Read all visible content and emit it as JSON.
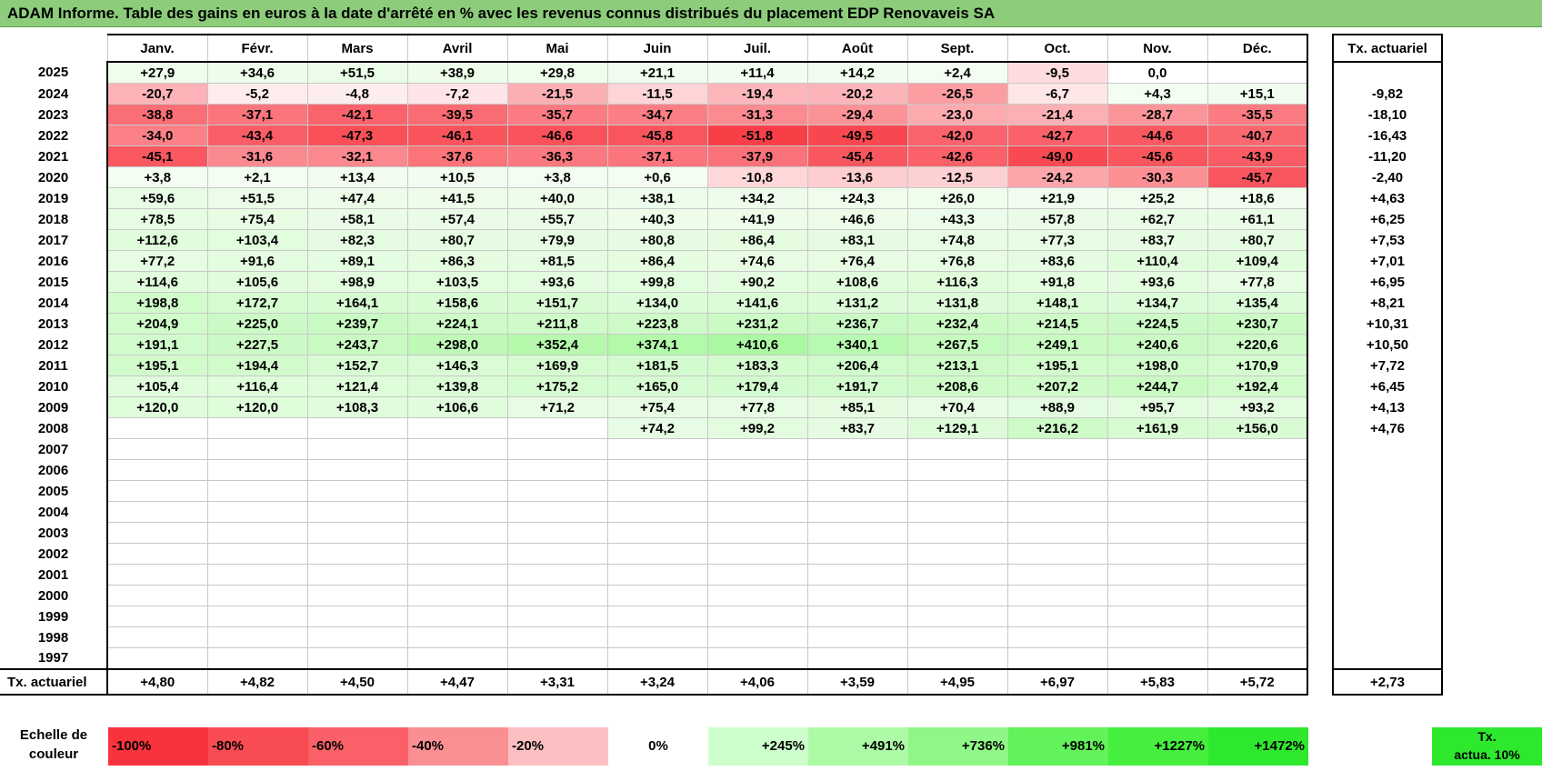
{
  "title": "ADAM Informe. Table des gains en euros à la date d'arrêté en % avec les revenus connus distribués du placement EDP Renovaveis SA",
  "months": [
    "Janv.",
    "Févr.",
    "Mars",
    "Avril",
    "Mai",
    "Juin",
    "Juil.",
    "Août",
    "Sept.",
    "Oct.",
    "Nov.",
    "Déc."
  ],
  "tx_header": "Tx. actuariel",
  "rows": [
    {
      "year": "2025",
      "values": [
        "+27,9",
        "+34,6",
        "+51,5",
        "+38,9",
        "+29,8",
        "+21,1",
        "+11,4",
        "+14,2",
        "+2,4",
        "-9,5",
        "0,0",
        ""
      ],
      "tx": ""
    },
    {
      "year": "2024",
      "values": [
        "-20,7",
        "-5,2",
        "-4,8",
        "-7,2",
        "-21,5",
        "-11,5",
        "-19,4",
        "-20,2",
        "-26,5",
        "-6,7",
        "+4,3",
        "+15,1"
      ],
      "tx": "-9,82"
    },
    {
      "year": "2023",
      "values": [
        "-38,8",
        "-37,1",
        "-42,1",
        "-39,5",
        "-35,7",
        "-34,7",
        "-31,3",
        "-29,4",
        "-23,0",
        "-21,4",
        "-28,7",
        "-35,5"
      ],
      "tx": "-18,10"
    },
    {
      "year": "2022",
      "values": [
        "-34,0",
        "-43,4",
        "-47,3",
        "-46,1",
        "-46,6",
        "-45,8",
        "-51,8",
        "-49,5",
        "-42,0",
        "-42,7",
        "-44,6",
        "-40,7"
      ],
      "tx": "-16,43"
    },
    {
      "year": "2021",
      "values": [
        "-45,1",
        "-31,6",
        "-32,1",
        "-37,6",
        "-36,3",
        "-37,1",
        "-37,9",
        "-45,4",
        "-42,6",
        "-49,0",
        "-45,6",
        "-43,9"
      ],
      "tx": "-11,20"
    },
    {
      "year": "2020",
      "values": [
        "+3,8",
        "+2,1",
        "+13,4",
        "+10,5",
        "+3,8",
        "+0,6",
        "-10,8",
        "-13,6",
        "-12,5",
        "-24,2",
        "-30,3",
        "-45,7"
      ],
      "tx": "-2,40"
    },
    {
      "year": "2019",
      "values": [
        "+59,6",
        "+51,5",
        "+47,4",
        "+41,5",
        "+40,0",
        "+38,1",
        "+34,2",
        "+24,3",
        "+26,0",
        "+21,9",
        "+25,2",
        "+18,6"
      ],
      "tx": "+4,63"
    },
    {
      "year": "2018",
      "values": [
        "+78,5",
        "+75,4",
        "+58,1",
        "+57,4",
        "+55,7",
        "+40,3",
        "+41,9",
        "+46,6",
        "+43,3",
        "+57,8",
        "+62,7",
        "+61,1"
      ],
      "tx": "+6,25"
    },
    {
      "year": "2017",
      "values": [
        "+112,6",
        "+103,4",
        "+82,3",
        "+80,7",
        "+79,9",
        "+80,8",
        "+86,4",
        "+83,1",
        "+74,8",
        "+77,3",
        "+83,7",
        "+80,7"
      ],
      "tx": "+7,53"
    },
    {
      "year": "2016",
      "values": [
        "+77,2",
        "+91,6",
        "+89,1",
        "+86,3",
        "+81,5",
        "+86,4",
        "+74,6",
        "+76,4",
        "+76,8",
        "+83,6",
        "+110,4",
        "+109,4"
      ],
      "tx": "+7,01"
    },
    {
      "year": "2015",
      "values": [
        "+114,6",
        "+105,6",
        "+98,9",
        "+103,5",
        "+93,6",
        "+99,8",
        "+90,2",
        "+108,6",
        "+116,3",
        "+91,8",
        "+93,6",
        "+77,8"
      ],
      "tx": "+6,95"
    },
    {
      "year": "2014",
      "values": [
        "+198,8",
        "+172,7",
        "+164,1",
        "+158,6",
        "+151,7",
        "+134,0",
        "+141,6",
        "+131,2",
        "+131,8",
        "+148,1",
        "+134,7",
        "+135,4"
      ],
      "tx": "+8,21"
    },
    {
      "year": "2013",
      "values": [
        "+204,9",
        "+225,0",
        "+239,7",
        "+224,1",
        "+211,8",
        "+223,8",
        "+231,2",
        "+236,7",
        "+232,4",
        "+214,5",
        "+224,5",
        "+230,7"
      ],
      "tx": "+10,31"
    },
    {
      "year": "2012",
      "values": [
        "+191,1",
        "+227,5",
        "+243,7",
        "+298,0",
        "+352,4",
        "+374,1",
        "+410,6",
        "+340,1",
        "+267,5",
        "+249,1",
        "+240,6",
        "+220,6"
      ],
      "tx": "+10,50"
    },
    {
      "year": "2011",
      "values": [
        "+195,1",
        "+194,4",
        "+152,7",
        "+146,3",
        "+169,9",
        "+181,5",
        "+183,3",
        "+206,4",
        "+213,1",
        "+195,1",
        "+198,0",
        "+170,9"
      ],
      "tx": "+7,72"
    },
    {
      "year": "2010",
      "values": [
        "+105,4",
        "+116,4",
        "+121,4",
        "+139,8",
        "+175,2",
        "+165,0",
        "+179,4",
        "+191,7",
        "+208,6",
        "+207,2",
        "+244,7",
        "+192,4"
      ],
      "tx": "+6,45"
    },
    {
      "year": "2009",
      "values": [
        "+120,0",
        "+120,0",
        "+108,3",
        "+106,6",
        "+71,2",
        "+75,4",
        "+77,8",
        "+85,1",
        "+70,4",
        "+88,9",
        "+95,7",
        "+93,2"
      ],
      "tx": "+4,13"
    },
    {
      "year": "2008",
      "values": [
        "",
        "",
        "",
        "",
        "",
        "+74,2",
        "+99,2",
        "+83,7",
        "+129,1",
        "+216,2",
        "+161,9",
        "+156,0"
      ],
      "tx": "+4,76"
    },
    {
      "year": "2007",
      "values": [
        "",
        "",
        "",
        "",
        "",
        "",
        "",
        "",
        "",
        "",
        "",
        ""
      ],
      "tx": ""
    },
    {
      "year": "2006",
      "values": [
        "",
        "",
        "",
        "",
        "",
        "",
        "",
        "",
        "",
        "",
        "",
        ""
      ],
      "tx": ""
    },
    {
      "year": "2005",
      "values": [
        "",
        "",
        "",
        "",
        "",
        "",
        "",
        "",
        "",
        "",
        "",
        ""
      ],
      "tx": ""
    },
    {
      "year": "2004",
      "values": [
        "",
        "",
        "",
        "",
        "",
        "",
        "",
        "",
        "",
        "",
        "",
        ""
      ],
      "tx": ""
    },
    {
      "year": "2003",
      "values": [
        "",
        "",
        "",
        "",
        "",
        "",
        "",
        "",
        "",
        "",
        "",
        ""
      ],
      "tx": ""
    },
    {
      "year": "2002",
      "values": [
        "",
        "",
        "",
        "",
        "",
        "",
        "",
        "",
        "",
        "",
        "",
        ""
      ],
      "tx": ""
    },
    {
      "year": "2001",
      "values": [
        "",
        "",
        "",
        "",
        "",
        "",
        "",
        "",
        "",
        "",
        "",
        ""
      ],
      "tx": ""
    },
    {
      "year": "2000",
      "values": [
        "",
        "",
        "",
        "",
        "",
        "",
        "",
        "",
        "",
        "",
        "",
        ""
      ],
      "tx": ""
    },
    {
      "year": "1999",
      "values": [
        "",
        "",
        "",
        "",
        "",
        "",
        "",
        "",
        "",
        "",
        "",
        ""
      ],
      "tx": ""
    },
    {
      "year": "1998",
      "values": [
        "",
        "",
        "",
        "",
        "",
        "",
        "",
        "",
        "",
        "",
        "",
        ""
      ],
      "tx": ""
    },
    {
      "year": "1997",
      "values": [
        "",
        "",
        "",
        "",
        "",
        "",
        "",
        "",
        "",
        "",
        "",
        ""
      ],
      "tx": ""
    }
  ],
  "bottom_row": {
    "label": "Tx. actuariel",
    "values": [
      "+4,80",
      "+4,82",
      "+4,50",
      "+4,47",
      "+3,31",
      "+3,24",
      "+4,06",
      "+3,59",
      "+4,95",
      "+6,97",
      "+5,83",
      "+5,72"
    ],
    "tx": "+2,73"
  },
  "scale": {
    "label_line1": "Echelle de",
    "label_line2": "couleur",
    "items": [
      {
        "text": "-100%",
        "color": "#f8333d",
        "align": "left"
      },
      {
        "text": "-80%",
        "color": "#f84b52",
        "align": "left"
      },
      {
        "text": "-60%",
        "color": "#f96067",
        "align": "left"
      },
      {
        "text": "-40%",
        "color": "#fa8f93",
        "align": "left"
      },
      {
        "text": "-20%",
        "color": "#fcc0c2",
        "align": "left"
      },
      {
        "text": "0%",
        "color": "#ffffff",
        "align": "center"
      },
      {
        "text": "+245%",
        "color": "#ccffcc",
        "align": "right"
      },
      {
        "text": "+491%",
        "color": "#adfaa6",
        "align": "right"
      },
      {
        "text": "+736%",
        "color": "#8ef786",
        "align": "right"
      },
      {
        "text": "+981%",
        "color": "#62f25a",
        "align": "right"
      },
      {
        "text": "+1227%",
        "color": "#46ee3d",
        "align": "right"
      },
      {
        "text": "+1472%",
        "color": "#2ee82e",
        "align": "right"
      }
    ],
    "final_line1": "Tx.",
    "final_line2": "actua. 10%"
  }
}
